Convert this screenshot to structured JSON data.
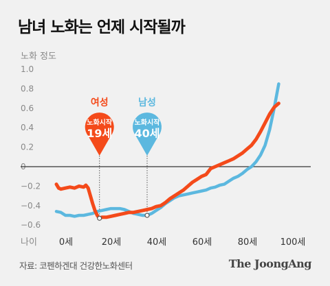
{
  "title": "남녀 노화는 언제 시작될까",
  "source": "자료: 코펜하겐대 건강한노화센터",
  "brand": "The JoongAng",
  "colors": {
    "female": "#f44a1a",
    "male": "#5cb8df",
    "baseline": "#333333",
    "axis_text": "#888888",
    "background": "#f1f1f1"
  },
  "callouts": {
    "female": {
      "group_label": "여성",
      "onset_label": "노화시작",
      "onset_age_label": "19세"
    },
    "male": {
      "group_label": "남성",
      "onset_label": "노화시작",
      "onset_age_label": "40세"
    }
  },
  "chart_data": {
    "type": "line",
    "title": "남녀 노화는 언제 시작될까",
    "ylabel": "노화 정도",
    "xlabel": "나이",
    "xlim": [
      -5,
      110
    ],
    "ylim": [
      -0.65,
      1.0
    ],
    "yticks": [
      1.0,
      0.8,
      0.6,
      0.4,
      0.2,
      0,
      -0.2,
      -0.4,
      -0.6
    ],
    "ytick_labels": [
      "1.0",
      "0.8",
      "0.6",
      "0.4",
      "0.2",
      "0",
      "−0.2",
      "−0.4",
      "−0.6"
    ],
    "xticks": [
      0,
      20,
      40,
      60,
      80,
      100
    ],
    "xtick_labels": [
      "0세",
      "20세",
      "40세",
      "60세",
      "80세",
      "100세"
    ],
    "baseline_y": 0,
    "grid": false,
    "onset_markers": [
      {
        "series": "여성",
        "x": 19,
        "y": -0.53
      },
      {
        "series": "남성",
        "x": 40,
        "y": -0.5
      }
    ],
    "series": [
      {
        "name": "남성",
        "color": "#5cb8df",
        "x": [
          0,
          2,
          4,
          6,
          8,
          10,
          12,
          14,
          16,
          18,
          20,
          22,
          24,
          26,
          28,
          30,
          32,
          34,
          36,
          38,
          40,
          42,
          44,
          46,
          48,
          50,
          52,
          54,
          56,
          58,
          60,
          62,
          64,
          66,
          68,
          70,
          72,
          74,
          76,
          78,
          80,
          82,
          84,
          86,
          88,
          90,
          92,
          94,
          96,
          98
        ],
        "y": [
          -0.46,
          -0.47,
          -0.5,
          -0.5,
          -0.51,
          -0.5,
          -0.5,
          -0.49,
          -0.48,
          -0.46,
          -0.45,
          -0.44,
          -0.43,
          -0.43,
          -0.43,
          -0.44,
          -0.46,
          -0.48,
          -0.49,
          -0.5,
          -0.5,
          -0.48,
          -0.45,
          -0.42,
          -0.38,
          -0.35,
          -0.32,
          -0.3,
          -0.29,
          -0.28,
          -0.27,
          -0.26,
          -0.25,
          -0.24,
          -0.22,
          -0.21,
          -0.19,
          -0.18,
          -0.15,
          -0.12,
          -0.1,
          -0.07,
          -0.03,
          0.0,
          0.05,
          0.12,
          0.22,
          0.38,
          0.6,
          0.85
        ]
      },
      {
        "name": "여성",
        "color": "#f44a1a",
        "x": [
          0,
          1,
          2,
          4,
          6,
          8,
          10,
          12,
          13,
          14,
          15,
          16,
          17,
          18,
          19,
          20,
          22,
          24,
          26,
          28,
          30,
          32,
          34,
          36,
          38,
          40,
          42,
          44,
          46,
          48,
          50,
          52,
          54,
          56,
          58,
          60,
          62,
          64,
          66,
          68,
          70,
          72,
          74,
          76,
          78,
          80,
          82,
          84,
          86,
          88,
          90,
          92,
          94,
          96,
          98
        ],
        "y": [
          -0.18,
          -0.22,
          -0.23,
          -0.22,
          -0.21,
          -0.22,
          -0.2,
          -0.21,
          -0.19,
          -0.22,
          -0.3,
          -0.38,
          -0.45,
          -0.5,
          -0.53,
          -0.52,
          -0.52,
          -0.51,
          -0.5,
          -0.49,
          -0.48,
          -0.47,
          -0.47,
          -0.46,
          -0.45,
          -0.44,
          -0.43,
          -0.41,
          -0.4,
          -0.37,
          -0.33,
          -0.3,
          -0.27,
          -0.24,
          -0.2,
          -0.16,
          -0.13,
          -0.1,
          -0.08,
          -0.02,
          0.0,
          0.02,
          0.04,
          0.06,
          0.08,
          0.11,
          0.14,
          0.18,
          0.22,
          0.28,
          0.36,
          0.45,
          0.54,
          0.61,
          0.65
        ]
      }
    ]
  }
}
